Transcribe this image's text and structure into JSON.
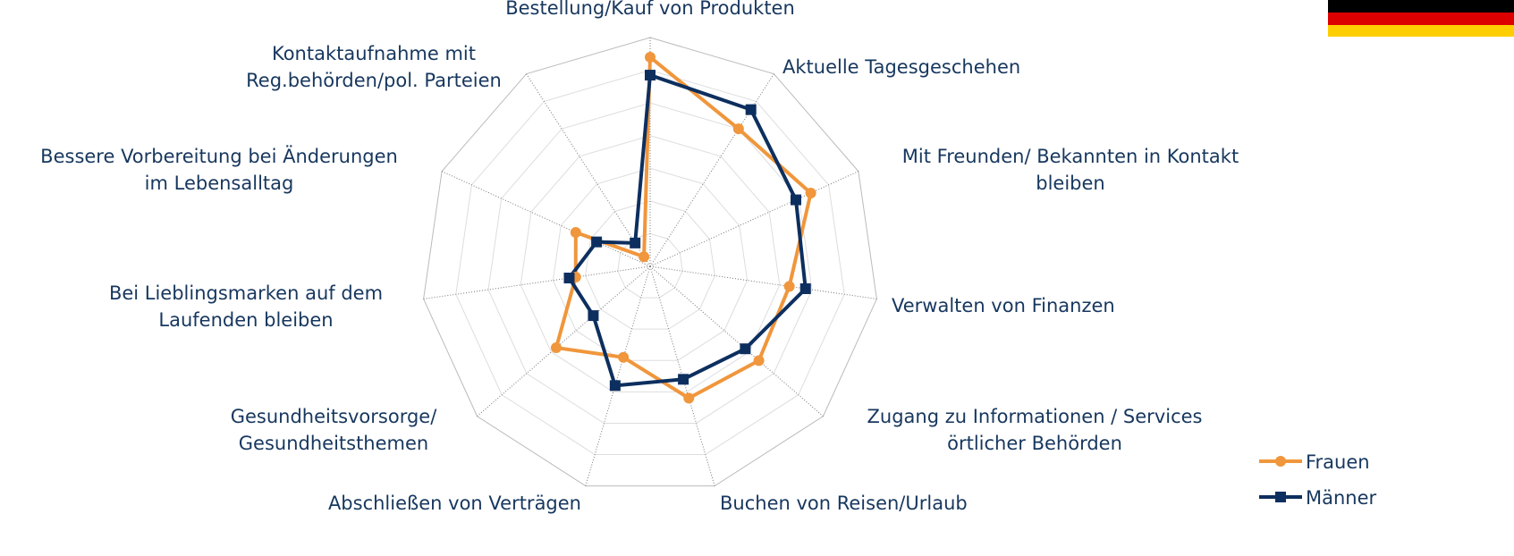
{
  "chart_data": {
    "type": "radar",
    "categories": [
      "Bestellung/Kauf von Produkten",
      "Aktuelle Tagesgeschehen",
      "Mit Freunden/ Bekannten in Kontakt\nbleiben",
      "Verwalten von Finanzen",
      "Zugang zu Informationen / Services\nörtlicher Behörden",
      "Buchen von Reisen/Urlaub",
      "Abschließen von Verträgen",
      "Gesundheitsvorsorge/\nGesundheitsthemen",
      "Bei  Lieblingsmarken auf dem\nLaufenden bleiben",
      "Bessere Vorbereitung bei Änderungen\nim Lebensalltag",
      "Kontaktaufnahme mit\nReg.behörden/pol. Parteien"
    ],
    "series": [
      {
        "name": "Frauen",
        "color": "#f0963c",
        "marker": "circle",
        "values": [
          64,
          50,
          54,
          43,
          44,
          42,
          29,
          38,
          23,
          25,
          3.5
        ]
      },
      {
        "name": "Männer",
        "color": "#0d2f5f",
        "marker": "square",
        "values": [
          58.5,
          57,
          49,
          48,
          38.5,
          36,
          38,
          23,
          25,
          18,
          8.5
        ]
      }
    ],
    "rlim": [
      0,
      70
    ],
    "rticks": [
      0,
      10,
      20,
      30,
      40,
      50,
      60,
      70
    ],
    "grid": true,
    "legend": "lower right"
  }
}
